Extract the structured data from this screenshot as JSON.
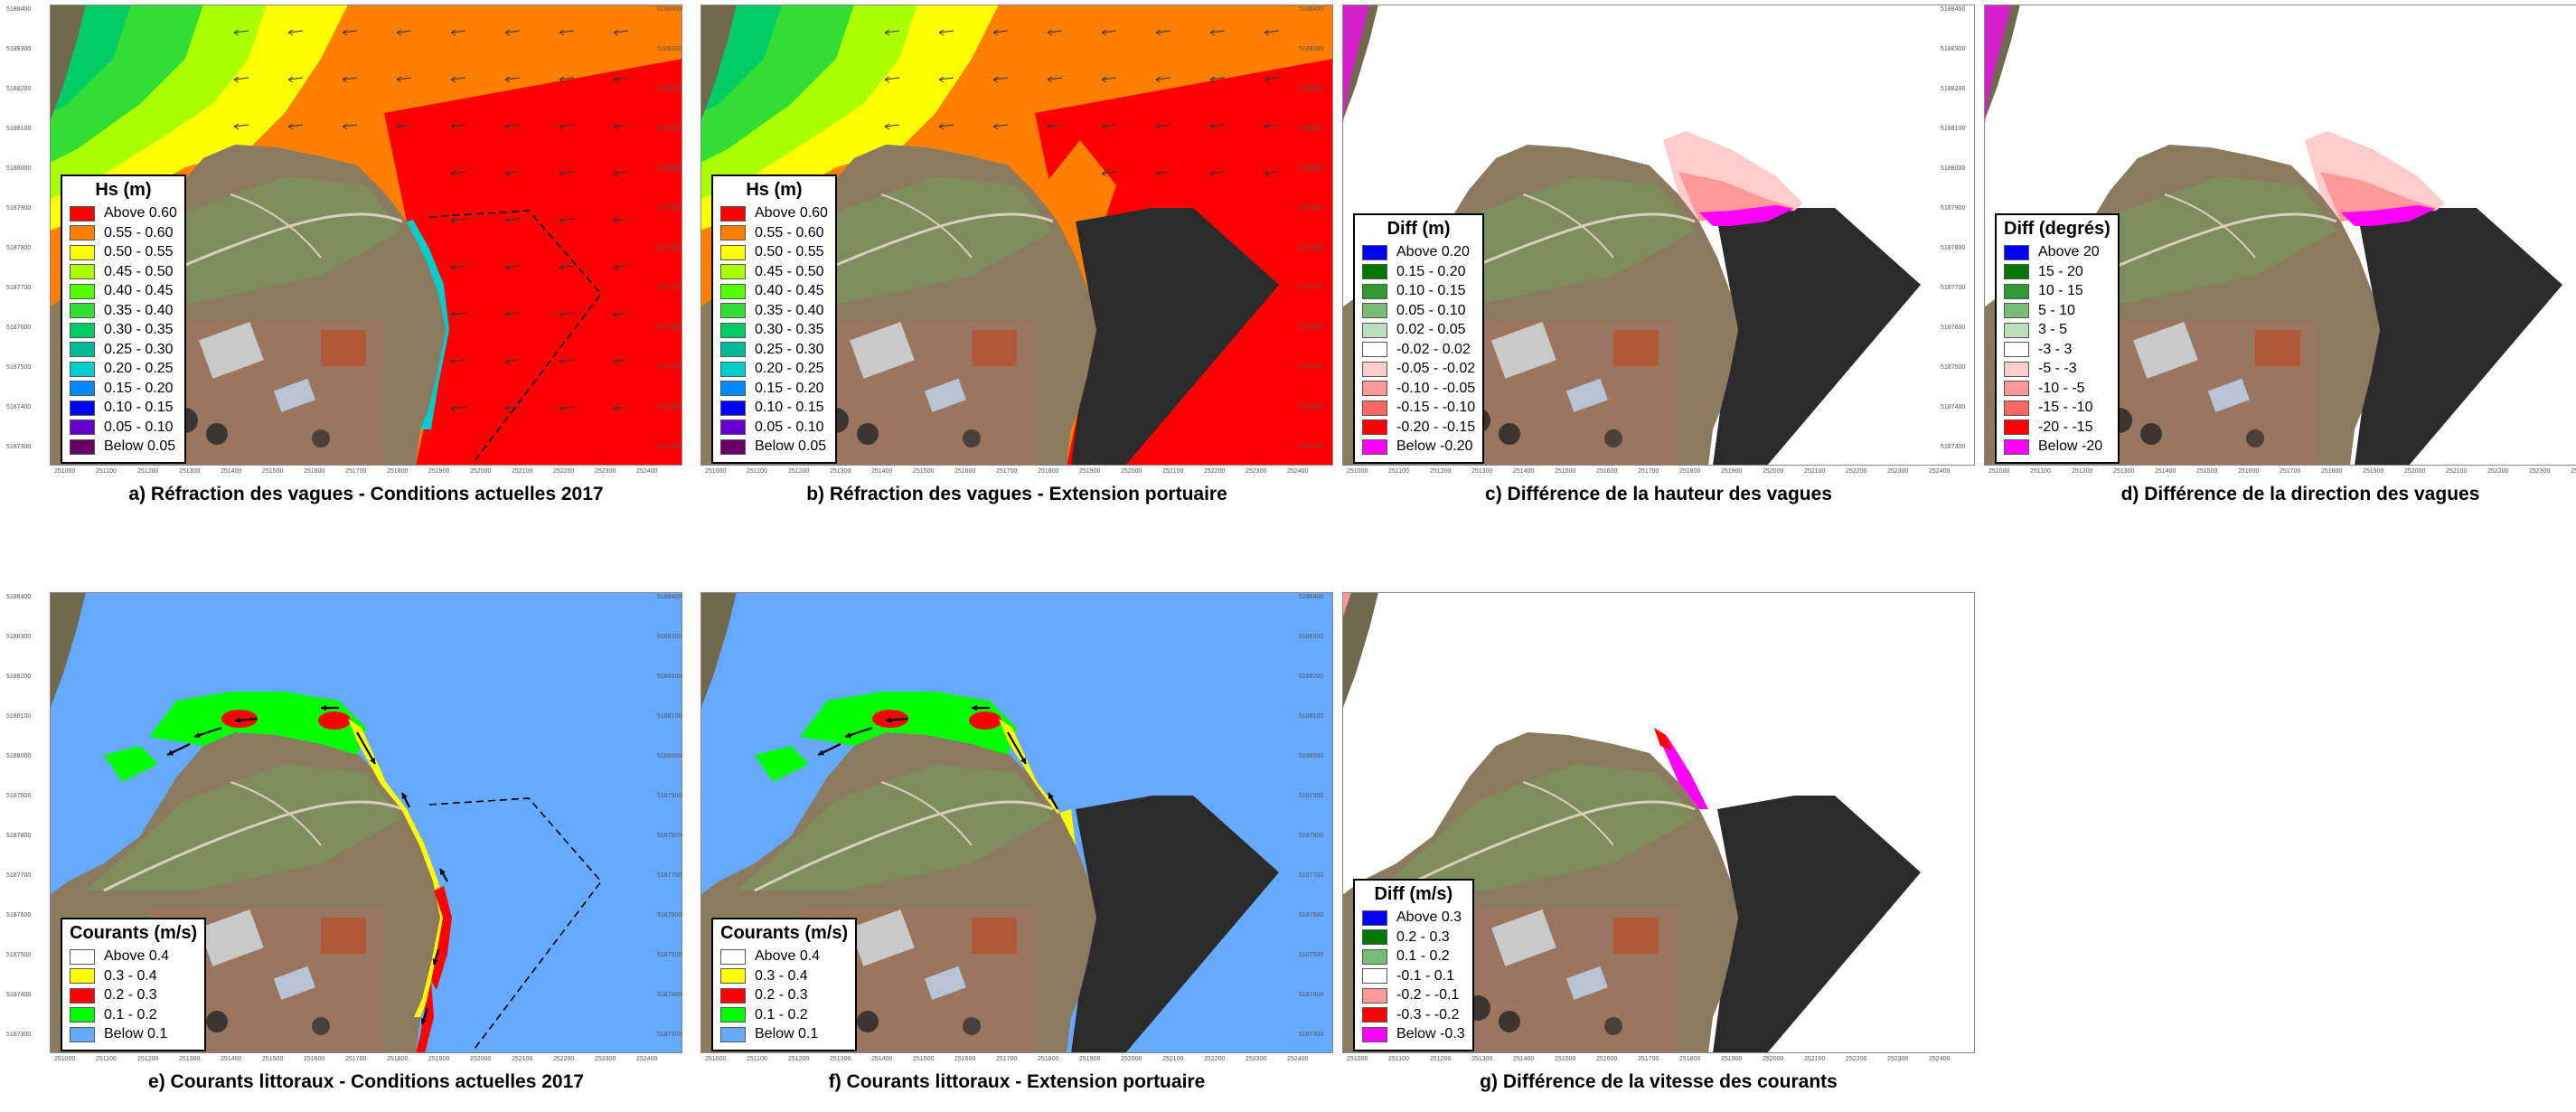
{
  "panels": [
    {
      "id": "a",
      "caption": "a) Réfraction des vagues - Conditions actuelles 2017",
      "type": "hs",
      "show_extension": false,
      "show_outline": true,
      "legend": {
        "title": "Hs (m)",
        "items": [
          {
            "label": "Above 0.60",
            "color": "#ff0000"
          },
          {
            "label": "0.55 - 0.60",
            "color": "#ff8000"
          },
          {
            "label": "0.50 - 0.55",
            "color": "#ffff00"
          },
          {
            "label": "0.45 - 0.50",
            "color": "#aaff00"
          },
          {
            "label": "0.40 - 0.45",
            "color": "#55ff00"
          },
          {
            "label": "0.35 - 0.40",
            "color": "#33dd33"
          },
          {
            "label": "0.30 - 0.35",
            "color": "#00cc66"
          },
          {
            "label": "0.25 - 0.30",
            "color": "#00bb99"
          },
          {
            "label": "0.20 - 0.25",
            "color": "#00cccc"
          },
          {
            "label": "0.15 - 0.20",
            "color": "#0088ff"
          },
          {
            "label": "0.10 - 0.15",
            "color": "#0000ff"
          },
          {
            "label": "0.05 - 0.10",
            "color": "#6600cc"
          },
          {
            "label": "Below 0.05",
            "color": "#660066"
          }
        ]
      }
    },
    {
      "id": "b",
      "caption": "b) Réfraction des vagues - Extension portuaire",
      "type": "hs",
      "show_extension": true,
      "show_outline": false,
      "legend": {
        "title": "Hs (m)",
        "items": [
          {
            "label": "Above 0.60",
            "color": "#ff0000"
          },
          {
            "label": "0.55 - 0.60",
            "color": "#ff8000"
          },
          {
            "label": "0.50 - 0.55",
            "color": "#ffff00"
          },
          {
            "label": "0.45 - 0.50",
            "color": "#aaff00"
          },
          {
            "label": "0.40 - 0.45",
            "color": "#55ff00"
          },
          {
            "label": "0.35 - 0.40",
            "color": "#33dd33"
          },
          {
            "label": "0.30 - 0.35",
            "color": "#00cc66"
          },
          {
            "label": "0.25 - 0.30",
            "color": "#00bb99"
          },
          {
            "label": "0.20 - 0.25",
            "color": "#00cccc"
          },
          {
            "label": "0.15 - 0.20",
            "color": "#0088ff"
          },
          {
            "label": "0.10 - 0.15",
            "color": "#0000ff"
          },
          {
            "label": "0.05 - 0.10",
            "color": "#6600cc"
          },
          {
            "label": "Below 0.05",
            "color": "#660066"
          }
        ]
      }
    },
    {
      "id": "c",
      "caption": "c) Différence de la hauteur des vagues",
      "type": "diff",
      "show_extension": true,
      "show_outline": false,
      "legend": {
        "title": "Diff (m)",
        "items": [
          {
            "label": "Above  0.20",
            "color": "#0000ff"
          },
          {
            "label": "0.15 -  0.20",
            "color": "#007700"
          },
          {
            "label": "0.10 -  0.15",
            "color": "#339933"
          },
          {
            "label": "0.05 -  0.10",
            "color": "#77bb77"
          },
          {
            "label": "0.02 -  0.05",
            "color": "#bbddbb"
          },
          {
            "label": "-0.02 -  0.02",
            "color": "#ffffff"
          },
          {
            "label": "-0.05 - -0.02",
            "color": "#ffcccc"
          },
          {
            "label": "-0.10 - -0.05",
            "color": "#ff9999"
          },
          {
            "label": "-0.15 - -0.10",
            "color": "#ff6666"
          },
          {
            "label": "-0.20 - -0.15",
            "color": "#ff0000"
          },
          {
            "label": "Below -0.20",
            "color": "#ff00ff"
          }
        ]
      }
    },
    {
      "id": "d",
      "caption": "d) Différence de la direction des vagues",
      "type": "diff",
      "show_extension": true,
      "show_outline": false,
      "legend": {
        "title": "Diff (degrés)",
        "items": [
          {
            "label": "Above  20",
            "color": "#0000ff"
          },
          {
            "label": "15 -  20",
            "color": "#007700"
          },
          {
            "label": "10 -  15",
            "color": "#339933"
          },
          {
            "label": "5 -  10",
            "color": "#77bb77"
          },
          {
            "label": "3 -   5",
            "color": "#bbddbb"
          },
          {
            "label": "-3 -   3",
            "color": "#ffffff"
          },
          {
            "label": "-5 -  -3",
            "color": "#ffcccc"
          },
          {
            "label": "-10 -  -5",
            "color": "#ff9999"
          },
          {
            "label": "-15 - -10",
            "color": "#ff6666"
          },
          {
            "label": "-20 - -15",
            "color": "#ff0000"
          },
          {
            "label": "Below -20",
            "color": "#ff00ff"
          }
        ]
      }
    },
    {
      "id": "e",
      "caption": "e) Courants littoraux - Conditions actuelles 2017",
      "type": "currents",
      "show_extension": false,
      "show_outline": true,
      "legend": {
        "title": "Courants (m/s)",
        "items": [
          {
            "label": "Above 0.4",
            "color": "#ffffff"
          },
          {
            "label": "0.3 - 0.4",
            "color": "#ffff00"
          },
          {
            "label": "0.2 - 0.3",
            "color": "#ff0000"
          },
          {
            "label": "0.1 - 0.2",
            "color": "#00ff00"
          },
          {
            "label": "Below 0.1",
            "color": "#66aaff"
          }
        ]
      }
    },
    {
      "id": "f",
      "caption": "f) Courants littoraux - Extension portuaire",
      "type": "currents",
      "show_extension": true,
      "show_outline": false,
      "legend": {
        "title": "Courants (m/s)",
        "items": [
          {
            "label": "Above 0.4",
            "color": "#ffffff"
          },
          {
            "label": "0.3 - 0.4",
            "color": "#ffff00"
          },
          {
            "label": "0.2 - 0.3",
            "color": "#ff0000"
          },
          {
            "label": "0.1 - 0.2",
            "color": "#00ff00"
          },
          {
            "label": "Below 0.1",
            "color": "#66aaff"
          }
        ]
      }
    },
    {
      "id": "g",
      "caption": "g) Différence de la vitesse des courants",
      "type": "diff",
      "show_extension": true,
      "show_outline": false,
      "legend": {
        "title": "Diff (m/s)",
        "items": [
          {
            "label": "Above  0.3",
            "color": "#0000ff"
          },
          {
            "label": "0.2 -  0.3",
            "color": "#007700"
          },
          {
            "label": "0.1 -  0.2",
            "color": "#77bb77"
          },
          {
            "label": "-0.1 -  0.1",
            "color": "#ffffff"
          },
          {
            "label": "-0.2 - -0.1",
            "color": "#ff9999"
          },
          {
            "label": "-0.3 - -0.2",
            "color": "#ff0000"
          },
          {
            "label": "Below -0.3",
            "color": "#ff00ff"
          }
        ]
      }
    }
  ],
  "axes": {
    "x_ticks": [
      "251000",
      "251100",
      "251200",
      "251300",
      "251400",
      "251500",
      "251600",
      "251700",
      "251800",
      "251900",
      "252000",
      "252100",
      "252200",
      "252300",
      "252400"
    ],
    "y_ticks": [
      "5188400",
      "5188300",
      "5188200",
      "5188100",
      "5188000",
      "5187900",
      "5187800",
      "5187700",
      "5187600",
      "5187500",
      "5187400",
      "5187300"
    ]
  },
  "colors": {
    "land": "#8a7a5e",
    "extension": "#2b2b2b",
    "currents_sea": "#66aaff",
    "outline": "#000000",
    "arrows": "#000000"
  }
}
